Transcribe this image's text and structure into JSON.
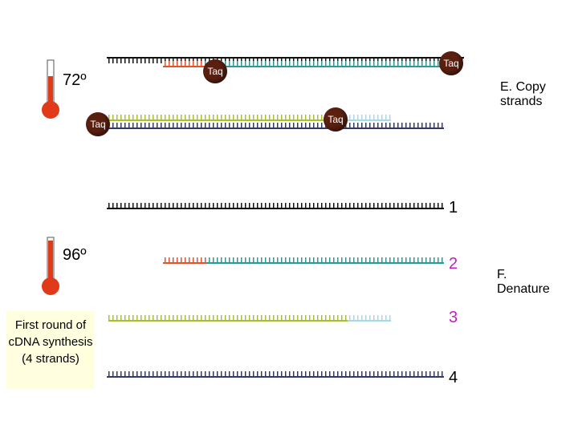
{
  "steps": [
    {
      "temperature": "72º",
      "label": "E. Copy strands",
      "enzymes": [
        "Taq",
        "Taq",
        "Taq",
        "Taq"
      ]
    },
    {
      "temperature": "96º",
      "label": "F. Denature",
      "strand_numbers": [
        "1",
        "2",
        "3",
        "4"
      ]
    }
  ],
  "note": "First round of cDNA synthesis (4 strands)"
}
